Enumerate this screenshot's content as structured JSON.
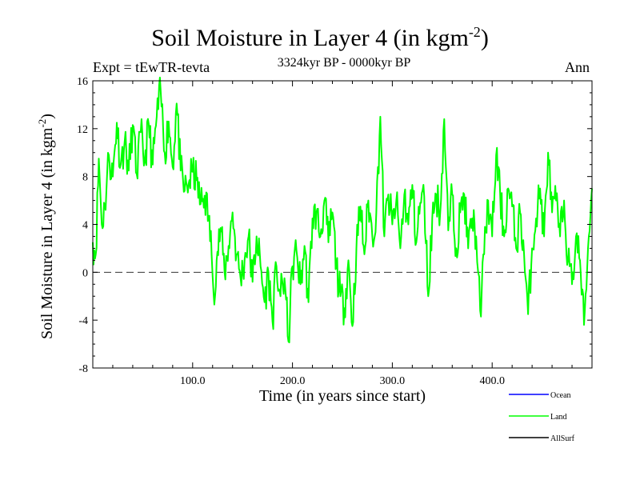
{
  "chart_data": {
    "type": "line",
    "title": "Soil Moisture in Layer 4 (in kgm",
    "title_sup": "-2",
    "title_suffix": ")",
    "subtitle": "3324kyr BP - 0000kyr BP",
    "left_label": "Expt = tEwTR-tevta",
    "right_label": "Ann",
    "xlabel": "Time (in years since start)",
    "ylabel": "Soil Moisture in Layer 4 (in kgm",
    "ylabel_sup": "-2",
    "ylabel_suffix": ")",
    "xlim": [
      0,
      500
    ],
    "ylim": [
      -8,
      16
    ],
    "xticks": [
      100,
      200,
      300,
      400
    ],
    "xtick_labels": [
      "100.0",
      "200.0",
      "300.0",
      "400.0"
    ],
    "yticks": [
      -8,
      -4,
      0,
      4,
      8,
      12,
      16
    ],
    "ytick_labels": [
      "-8",
      "-4",
      "0",
      "4",
      "8",
      "12",
      "16"
    ],
    "reference_line": 0,
    "legend": [
      {
        "name": "Ocean",
        "color": "#0000ff"
      },
      {
        "name": "Land",
        "color": "#00ff00"
      },
      {
        "name": "AllSurf",
        "color": "#000000"
      }
    ],
    "series": [
      {
        "name": "Land",
        "color": "#00ff00",
        "anchors_x": [
          0,
          3,
          6,
          9,
          12,
          16,
          20,
          24,
          28,
          32,
          36,
          40,
          44,
          48,
          52,
          56,
          60,
          64,
          68,
          72,
          76,
          80,
          84,
          88,
          92,
          96,
          100,
          104,
          108,
          112,
          116,
          119,
          121,
          124,
          128,
          132,
          136,
          140,
          144,
          148,
          152,
          156,
          160,
          164,
          168,
          172,
          176,
          180,
          184,
          188,
          192,
          196,
          200,
          204,
          208,
          212,
          216,
          220,
          224,
          228,
          232,
          236,
          240,
          244,
          248,
          252,
          256,
          260,
          264,
          268,
          272,
          276,
          280,
          284,
          288,
          292,
          296,
          300,
          304,
          308,
          312,
          316,
          320,
          324,
          328,
          332,
          336,
          340,
          344,
          348,
          352,
          356,
          360,
          364,
          368,
          372,
          376,
          380,
          384,
          386,
          388,
          392,
          396,
          400,
          404,
          408,
          412,
          416,
          420,
          424,
          428,
          432,
          436,
          440,
          444,
          448,
          452,
          456,
          460,
          464,
          468,
          472,
          476,
          480,
          484,
          488,
          492,
          496,
          500
        ],
        "anchors_y": [
          2.5,
          1.5,
          9.5,
          4.0,
          5.5,
          9.8,
          8.0,
          12.5,
          9.0,
          11.0,
          8.5,
          12.3,
          8.2,
          11.7,
          9.2,
          12.4,
          9.0,
          13.0,
          15.1,
          10.0,
          12.6,
          8.8,
          14.1,
          8.5,
          6.8,
          7.4,
          8.4,
          7.7,
          5.7,
          6.4,
          4.7,
          1.5,
          -1.8,
          1.0,
          3.7,
          0.0,
          2.2,
          5.0,
          1.5,
          -0.5,
          1.0,
          3.0,
          -0.8,
          3.0,
          0.5,
          -2.5,
          0.0,
          -4.1,
          0.5,
          -2.0,
          -0.5,
          -5.8,
          0.5,
          1.8,
          -1.0,
          2.2,
          -2.5,
          4.5,
          5.0,
          3.0,
          6.0,
          2.5,
          5.0,
          0.5,
          -2.0,
          -3.0,
          1.0,
          -4.5,
          2.0,
          5.5,
          1.5,
          6.0,
          3.0,
          5.0,
          13.0,
          3.0,
          6.5,
          4.0,
          6.0,
          2.0,
          6.5,
          4.0,
          7.3,
          2.5,
          5.8,
          6.3,
          -2.0,
          4.5,
          6.5,
          5.0,
          12.8,
          3.5,
          6.5,
          2.0,
          5.0,
          6.5,
          2.0,
          4.5,
          3.0,
          0.0,
          -3.2,
          1.5,
          6.0,
          3.0,
          9.8,
          6.5,
          3.0,
          7.0,
          5.5,
          2.0,
          5.0,
          1.5,
          -3.5,
          2.0,
          4.5,
          7.0,
          3.0,
          10.0,
          5.0,
          6.0,
          3.0,
          6.0,
          1.0,
          -1.0,
          3.0,
          1.0,
          -4.4,
          2.0,
          7.0
        ],
        "seed": 11,
        "jitter": 1.6,
        "points_per_unit": 1.2
      }
    ]
  }
}
